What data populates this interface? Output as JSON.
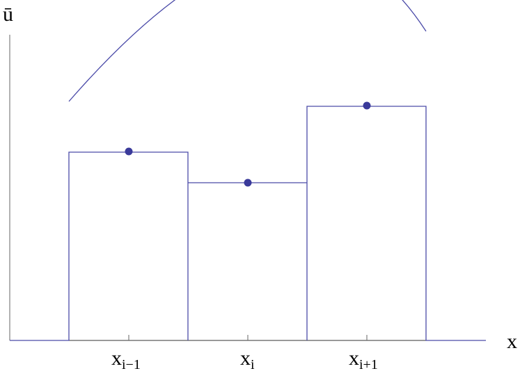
{
  "y_axis_label": "ū",
  "x_axis_label": "x",
  "ticks": [
    {
      "base": "x",
      "sub": "i−1"
    },
    {
      "base": "x",
      "sub": "i"
    },
    {
      "base": "x",
      "sub": "i+1"
    }
  ]
}
